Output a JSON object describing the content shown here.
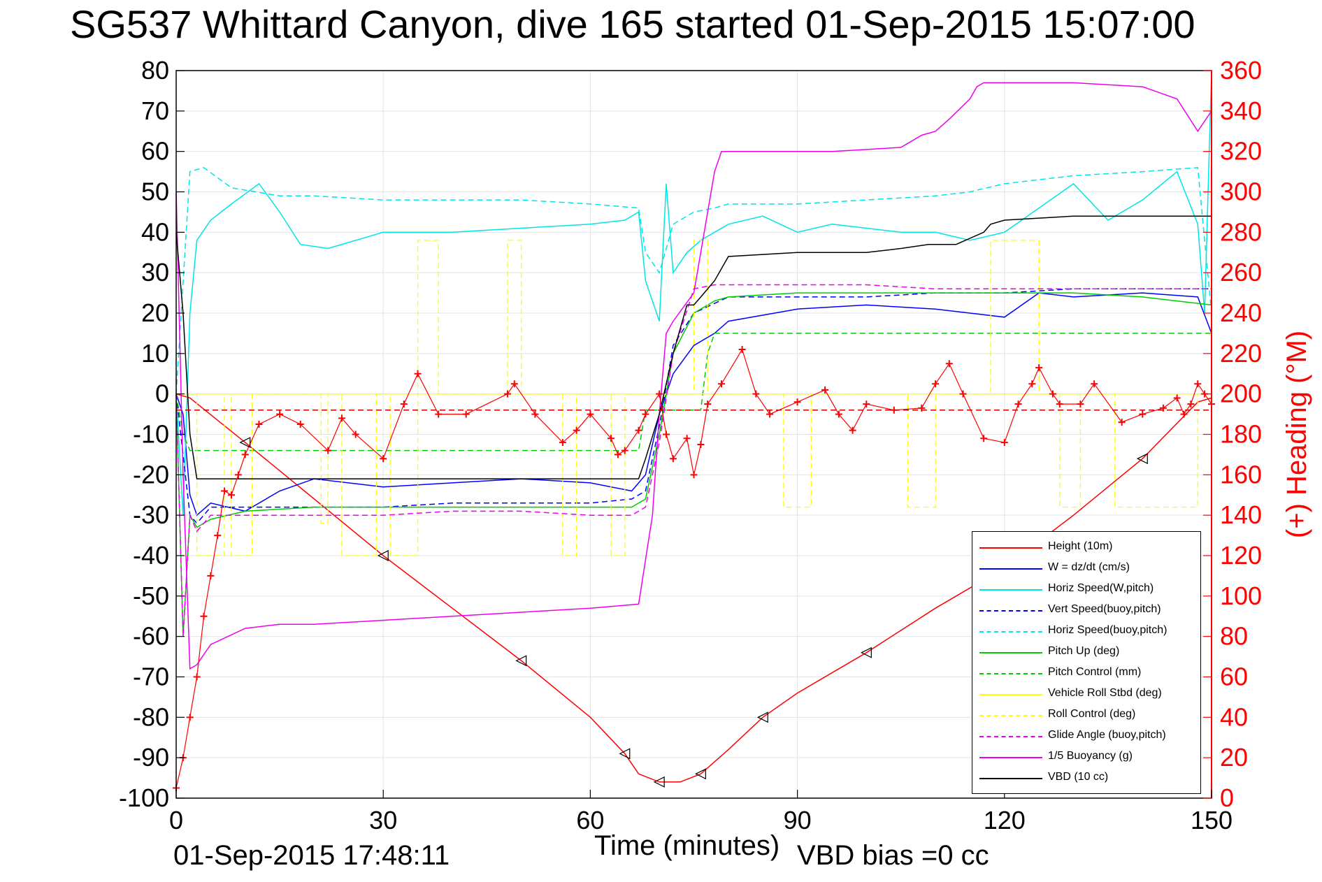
{
  "title": "SG537 Whittard Canyon, dive 165 started 01-Sep-2015 15:07:00",
  "timestamp": "01-Sep-2015 17:48:11",
  "bias_note": "VBD bias =0 cc",
  "chart_data": {
    "type": "line",
    "title": "SG537 Whittard Canyon, dive 165 started 01-Sep-2015 15:07:00",
    "xlabel": "Time (minutes)",
    "ylabel": "",
    "y2label": "(+) Heading (°M)",
    "xlim": [
      0,
      150
    ],
    "ylim": [
      -100,
      80
    ],
    "y2lim": [
      0,
      360
    ],
    "xticks": [
      "0",
      "30",
      "60",
      "90",
      "120",
      "150"
    ],
    "yticks": [
      "80",
      "70",
      "60",
      "50",
      "40",
      "30",
      "20",
      "10",
      "0",
      "-10",
      "-20",
      "-30",
      "-40",
      "-50",
      "-60",
      "-70",
      "-80",
      "-90",
      "-100"
    ],
    "y2ticks": [
      "360",
      "340",
      "320",
      "300",
      "280",
      "260",
      "240",
      "220",
      "200",
      "180",
      "160",
      "140",
      "120",
      "100",
      "80",
      "60",
      "40",
      "20",
      "0"
    ],
    "grid": true,
    "legend_position": "bottom-right",
    "series": [
      {
        "name": "Height (10m)",
        "color": "#ff0000",
        "style": "solid",
        "axis": "left",
        "x": [
          0,
          2,
          10,
          20,
          30,
          40,
          50,
          60,
          65,
          67,
          70,
          73,
          76,
          80,
          85,
          90,
          100,
          110,
          120,
          130,
          140,
          148,
          150
        ],
        "y": [
          0,
          -1,
          -12,
          -26,
          -40,
          -53,
          -66,
          -80,
          -89,
          -94,
          -96,
          -96,
          -94,
          -88,
          -80,
          -74,
          -64,
          -53,
          -43,
          -30,
          -16,
          -2,
          -1
        ]
      },
      {
        "name": "W = dz/dt (cm/s)",
        "color": "#0000ff",
        "style": "solid",
        "axis": "left",
        "x": [
          0,
          1,
          2,
          3,
          5,
          10,
          15,
          20,
          30,
          40,
          50,
          60,
          66,
          68,
          70,
          72,
          75,
          78,
          80,
          90,
          100,
          110,
          120,
          125,
          130,
          140,
          148,
          150
        ],
        "y": [
          0,
          -5,
          -25,
          -30,
          -27,
          -29,
          -24,
          -21,
          -23,
          -22,
          -21,
          -22,
          -24,
          -20,
          -5,
          5,
          12,
          15,
          18,
          21,
          22,
          21,
          19,
          25,
          24,
          25,
          24,
          15
        ]
      },
      {
        "name": "Horiz Speed(W,pitch)",
        "color": "#00e5e5",
        "style": "solid",
        "axis": "left",
        "x": [
          0,
          1,
          2,
          3,
          5,
          8,
          12,
          15,
          18,
          22,
          30,
          40,
          50,
          60,
          65,
          67,
          68,
          70,
          71,
          72,
          74,
          76,
          78,
          80,
          85,
          90,
          95,
          100,
          105,
          110,
          115,
          120,
          125,
          130,
          135,
          140,
          145,
          148,
          149,
          150
        ],
        "y": [
          0,
          -30,
          20,
          38,
          43,
          47,
          52,
          45,
          37,
          36,
          40,
          40,
          41,
          42,
          43,
          45,
          28,
          18,
          52,
          30,
          35,
          38,
          40,
          42,
          44,
          40,
          42,
          41,
          40,
          40,
          38,
          40,
          46,
          52,
          43,
          48,
          55,
          42,
          20,
          80
        ]
      },
      {
        "name": "Vert Speed(buoy,pitch)",
        "color": "#0000ff",
        "style": "dashed",
        "axis": "left",
        "x": [
          0,
          2,
          3,
          5,
          10,
          20,
          30,
          40,
          50,
          60,
          66,
          68,
          70,
          72,
          75,
          80,
          90,
          100,
          110,
          120,
          130,
          140,
          150
        ],
        "y": [
          0,
          -30,
          -32,
          -28,
          -28,
          -28,
          -28,
          -27,
          -27,
          -27,
          -26,
          -24,
          -8,
          12,
          20,
          24,
          24,
          24,
          25,
          25,
          26,
          26,
          26
        ]
      },
      {
        "name": "Horiz Speed(buoy,pitch)",
        "color": "#00e5e5",
        "style": "dashed",
        "axis": "left",
        "x": [
          0,
          2,
          4,
          8,
          15,
          20,
          30,
          40,
          50,
          60,
          67,
          68,
          70,
          72,
          75,
          78,
          80,
          90,
          100,
          110,
          115,
          120,
          125,
          130,
          140,
          148,
          150
        ],
        "y": [
          0,
          55,
          56,
          51,
          49,
          49,
          48,
          48,
          48,
          47,
          46,
          35,
          30,
          42,
          45,
          46,
          47,
          47,
          48,
          49,
          50,
          52,
          53,
          54,
          55,
          56,
          20
        ]
      },
      {
        "name": "Pitch Up (deg)",
        "color": "#00cc00",
        "style": "solid",
        "axis": "left",
        "x": [
          0,
          1,
          2,
          3,
          5,
          10,
          20,
          30,
          40,
          50,
          60,
          66,
          68,
          70,
          72,
          75,
          78,
          80,
          90,
          100,
          110,
          120,
          125,
          130,
          140,
          150
        ],
        "y": [
          0,
          -60,
          -30,
          -33,
          -31,
          -29,
          -28,
          -28,
          -28,
          -28,
          -28,
          -28,
          -26,
          -10,
          10,
          20,
          23,
          24,
          25,
          25,
          25,
          25,
          25,
          25,
          24,
          22
        ]
      },
      {
        "name": "Pitch Control (mm)",
        "color": "#00cc00",
        "style": "dashed",
        "axis": "left",
        "x": [
          0,
          1,
          2,
          3,
          67,
          68,
          76,
          77,
          78,
          150
        ],
        "y": [
          0,
          -10,
          -14,
          -14,
          -14,
          -4,
          -4,
          10,
          15,
          15
        ]
      },
      {
        "name": "Vehicle Roll Stbd (deg)",
        "color": "#ffff00",
        "style": "solid",
        "axis": "left",
        "x": [
          0,
          10,
          30,
          50,
          70,
          90,
          110,
          130,
          150
        ],
        "y": [
          0,
          0,
          0,
          0,
          0,
          0,
          0,
          0,
          0
        ]
      },
      {
        "name": "Roll Control (deg)",
        "color": "#ffff00",
        "style": "dashed",
        "axis": "left",
        "x": [
          0,
          3,
          3,
          7,
          7,
          8,
          8,
          11,
          11,
          12,
          12,
          21,
          21,
          22,
          22,
          24,
          24,
          29,
          29,
          31,
          31,
          35,
          35,
          38,
          38,
          48,
          48,
          50,
          50,
          56,
          56,
          58,
          58,
          63,
          63,
          65,
          65,
          67,
          67,
          75,
          75,
          77,
          77,
          88,
          88,
          92,
          92,
          106,
          106,
          110,
          110,
          118,
          118,
          125,
          125,
          128,
          128,
          131,
          131,
          136,
          136,
          148,
          148,
          150
        ],
        "y": [
          0,
          0,
          -40,
          -40,
          0,
          0,
          -40,
          -40,
          0,
          0,
          0,
          0,
          -32,
          -32,
          0,
          0,
          -40,
          -40,
          0,
          0,
          -40,
          -40,
          38,
          38,
          0,
          0,
          38,
          38,
          0,
          0,
          -40,
          -40,
          0,
          0,
          -40,
          -40,
          0,
          0,
          0,
          0,
          38,
          38,
          0,
          0,
          -28,
          -28,
          0,
          0,
          -28,
          -28,
          0,
          0,
          38,
          38,
          0,
          0,
          -28,
          -28,
          0,
          0,
          -28,
          -28,
          0,
          0
        ]
      },
      {
        "name": "Glide Angle (buoy,pitch)",
        "color": "#ee00ee",
        "style": "dashed",
        "axis": "left",
        "x": [
          0,
          1,
          2,
          3,
          5,
          10,
          20,
          30,
          40,
          50,
          60,
          66,
          68,
          70,
          72,
          75,
          78,
          80,
          90,
          100,
          110,
          120,
          130,
          140,
          150
        ],
        "y": [
          0,
          -60,
          -30,
          -34,
          -30,
          -30,
          -30,
          -30,
          -29,
          -29,
          -30,
          -30,
          -28,
          -12,
          10,
          26,
          27,
          27,
          27,
          27,
          26,
          26,
          26,
          26,
          26
        ]
      },
      {
        "name": "1/5 Buoyancy (g)",
        "color": "#ee00ee",
        "style": "solid",
        "axis": "left",
        "x": [
          0,
          1,
          2,
          3,
          5,
          10,
          15,
          20,
          30,
          40,
          50,
          60,
          67,
          69,
          70,
          71,
          72,
          75,
          78,
          79,
          80,
          90,
          95,
          105,
          108,
          110,
          112,
          115,
          116,
          117,
          118,
          130,
          140,
          145,
          148,
          150
        ],
        "y": [
          50,
          -20,
          -68,
          -67,
          -62,
          -58,
          -57,
          -57,
          -56,
          -55,
          -54,
          -53,
          -52,
          -30,
          -5,
          15,
          18,
          25,
          55,
          60,
          60,
          60,
          60,
          61,
          64,
          65,
          68,
          73,
          76,
          77,
          77,
          77,
          76,
          73,
          65,
          70
        ]
      },
      {
        "name": "VBD (10 cc)",
        "color": "#000000",
        "style": "solid",
        "axis": "left",
        "x": [
          0,
          1,
          2,
          3,
          67,
          68,
          70,
          72,
          74,
          75,
          76,
          78,
          80,
          90,
          100,
          105,
          109,
          113,
          117,
          118,
          120,
          130,
          140,
          150
        ],
        "y": [
          40,
          20,
          -10,
          -21,
          -21,
          -16,
          -5,
          10,
          22,
          22,
          24,
          28,
          34,
          35,
          35,
          36,
          37,
          37,
          40,
          42,
          43,
          44,
          44,
          44
        ]
      },
      {
        "name": "(+) Heading (°M)",
        "color": "#ff0000",
        "style": "markers",
        "axis": "right",
        "x": [
          0,
          1,
          2,
          3,
          4,
          5,
          6,
          7,
          8,
          9,
          10,
          12,
          15,
          18,
          22,
          24,
          26,
          30,
          33,
          35,
          38,
          42,
          48,
          49,
          52,
          56,
          58,
          60,
          63,
          64,
          65,
          67,
          68,
          70,
          71,
          72,
          74,
          75,
          76,
          77,
          79,
          82,
          84,
          86,
          90,
          94,
          96,
          98,
          100,
          104,
          108,
          110,
          112,
          114,
          117,
          120,
          122,
          124,
          125,
          127,
          128,
          131,
          133,
          137,
          140,
          143,
          145,
          146,
          147,
          148,
          149,
          150
        ],
        "y": [
          5,
          20,
          40,
          60,
          90,
          110,
          130,
          152,
          150,
          160,
          170,
          185,
          190,
          185,
          172,
          188,
          180,
          168,
          195,
          210,
          190,
          190,
          200,
          205,
          190,
          176,
          182,
          190,
          178,
          170,
          172,
          182,
          190,
          200,
          180,
          168,
          178,
          160,
          175,
          195,
          205,
          222,
          200,
          190,
          196,
          202,
          190,
          182,
          195,
          192,
          193,
          205,
          215,
          200,
          178,
          176,
          195,
          205,
          213,
          200,
          195,
          195,
          205,
          186,
          190,
          193,
          198,
          190,
          195,
          205,
          200,
          195
        ]
      },
      {
        "name": "",
        "color": "#cc0000",
        "style": "dashed-ref",
        "axis": "right",
        "x": [
          0,
          150
        ],
        "y": [
          192,
          192
        ]
      }
    ]
  }
}
